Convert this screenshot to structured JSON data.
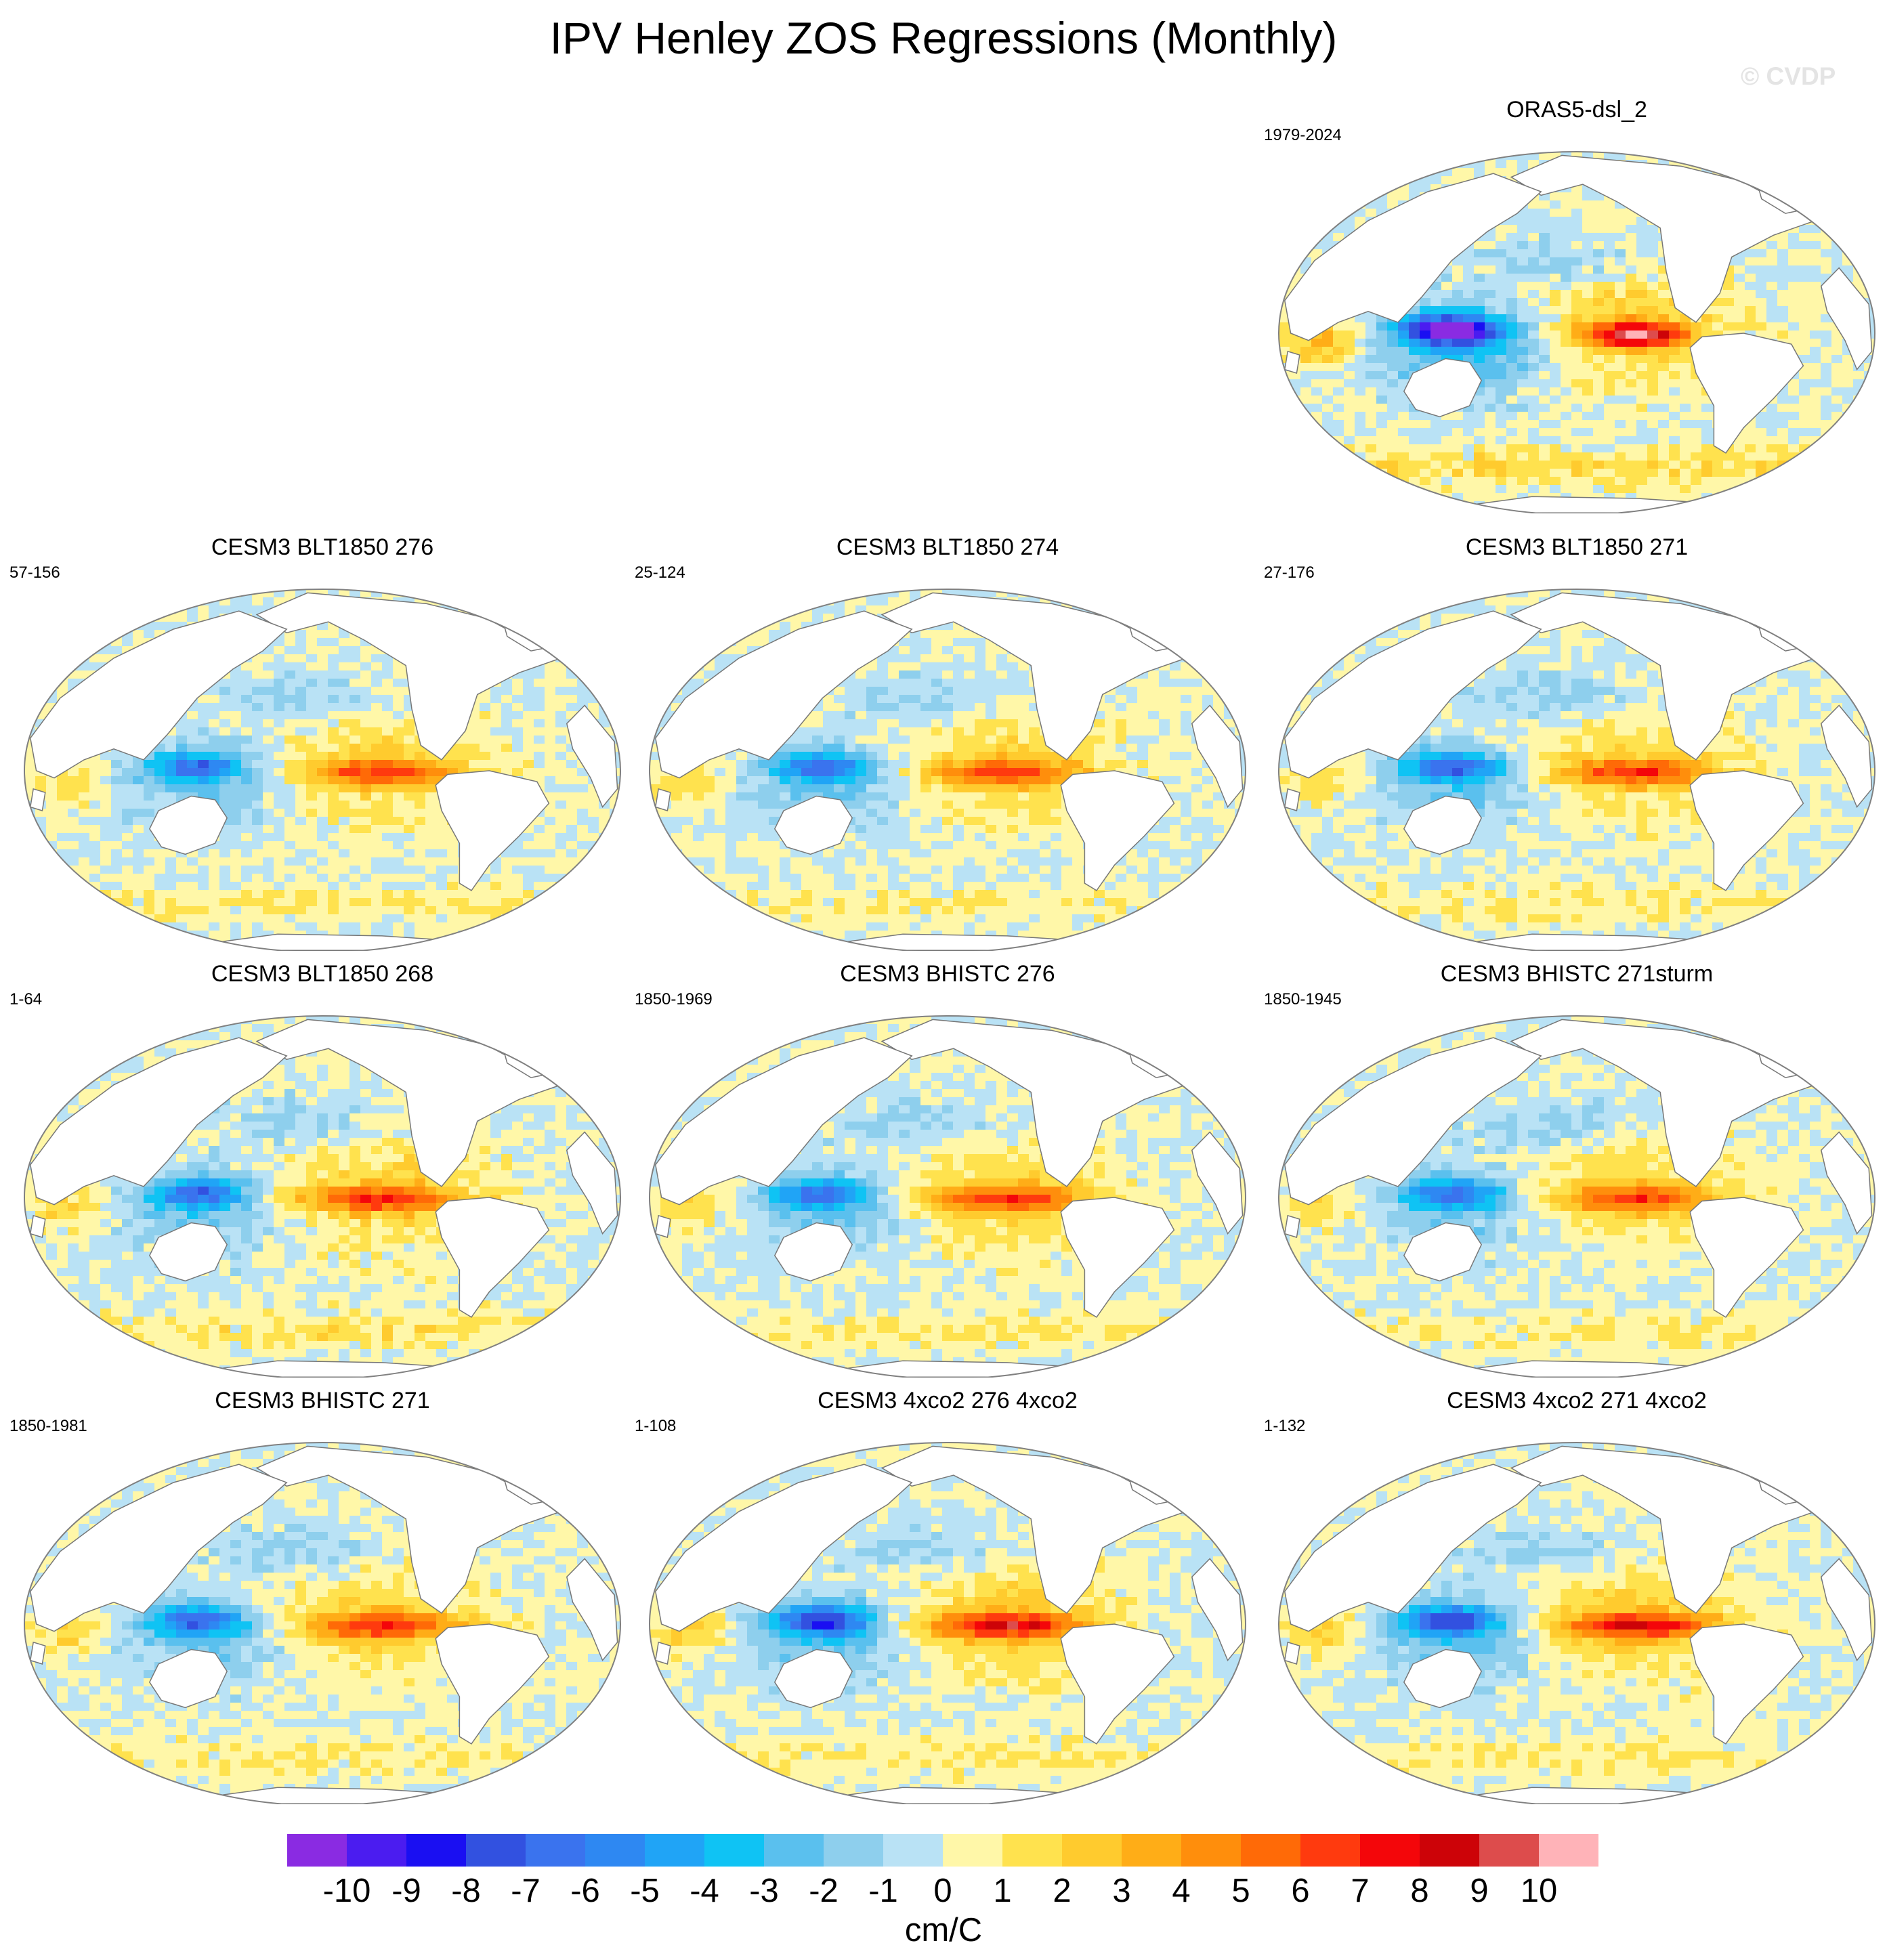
{
  "figure": {
    "title": "IPV Henley ZOS Regressions (Monthly)",
    "watermark": "© CVDP"
  },
  "panels": [
    {
      "title": "ORAS5-dsl_2",
      "period": "1979-2024",
      "intensity": 1.25,
      "broad": 0.65,
      "noise": 0.35,
      "south_warm": 1.0,
      "seed": 3
    },
    {
      "title": "CESM3 BLT1850 276",
      "period": "57-156",
      "intensity": 0.72,
      "broad": 1.0,
      "noise": 0.3,
      "south_warm": 0.6,
      "seed": 11
    },
    {
      "title": "CESM3 BLT1850 274",
      "period": "25-124",
      "intensity": 0.72,
      "broad": 1.0,
      "noise": 0.3,
      "south_warm": 0.5,
      "seed": 17
    },
    {
      "title": "CESM3 BLT1850 271",
      "period": "27-176",
      "intensity": 0.74,
      "broad": 1.0,
      "noise": 0.3,
      "south_warm": 0.6,
      "seed": 23
    },
    {
      "title": "CESM3 BLT1850 268",
      "period": "1-64",
      "intensity": 0.74,
      "broad": 1.05,
      "noise": 0.35,
      "south_warm": 0.8,
      "seed": 29
    },
    {
      "title": "CESM3 BHISTC 276",
      "period": "1850-1969",
      "intensity": 0.72,
      "broad": 1.05,
      "noise": 0.3,
      "south_warm": 0.6,
      "seed": 31
    },
    {
      "title": "CESM3 BHISTC 271sturm",
      "period": "1850-1945",
      "intensity": 0.7,
      "broad": 1.0,
      "noise": 0.3,
      "south_warm": 0.6,
      "seed": 37
    },
    {
      "title": "CESM3 BHISTC 271",
      "period": "1850-1981",
      "intensity": 0.76,
      "broad": 1.0,
      "noise": 0.3,
      "south_warm": 0.6,
      "seed": 41
    },
    {
      "title": "CESM3 4xco2 276 4xco2",
      "period": "1-108",
      "intensity": 0.9,
      "broad": 1.0,
      "noise": 0.3,
      "south_warm": 0.6,
      "seed": 43
    },
    {
      "title": "CESM3 4xco2 271 4xco2",
      "period": "1-132",
      "intensity": 0.86,
      "broad": 1.0,
      "noise": 0.3,
      "south_warm": 0.6,
      "seed": 47
    }
  ],
  "colorbar": {
    "units": "cm/C",
    "labels": [
      "-10",
      "-9",
      "-8",
      "-7",
      "-6",
      "-5",
      "-4",
      "-3",
      "-2",
      "-1",
      "0",
      "1",
      "2",
      "3",
      "4",
      "5",
      "6",
      "7",
      "8",
      "9",
      "10"
    ],
    "levels": [
      -10,
      -9,
      -8,
      -7,
      -6,
      -5,
      -4,
      -3,
      -2,
      -1,
      0,
      1,
      2,
      3,
      4,
      5,
      6,
      7,
      8,
      9,
      10
    ],
    "colors": [
      "#8a2be2",
      "#4b1cf0",
      "#1a0ff2",
      "#3251e0",
      "#3a73ee",
      "#2e88f2",
      "#20a4f6",
      "#0fc3f4",
      "#5ac0ee",
      "#8ecfed",
      "#b9e2f5",
      "#fff7a8",
      "#ffe24e",
      "#ffcb2e",
      "#ffad17",
      "#ff8e0c",
      "#ff6a07",
      "#ff3a0e",
      "#f4060a",
      "#cd0308",
      "#dd4c4c",
      "#ffb3b8"
    ]
  }
}
